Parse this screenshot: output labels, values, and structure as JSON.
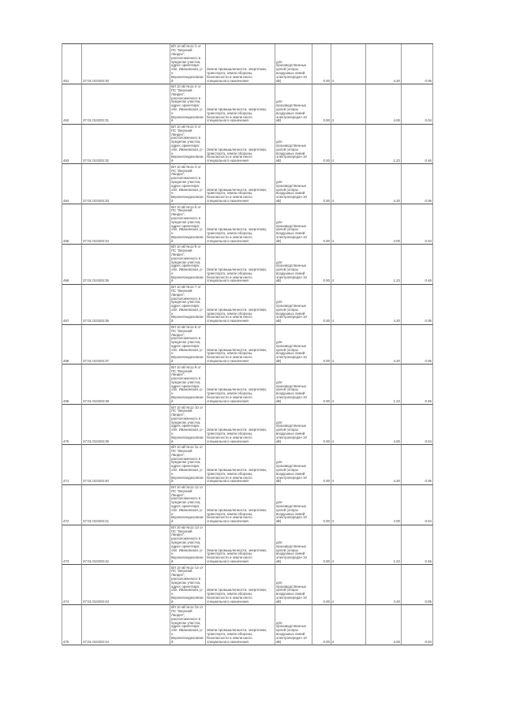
{
  "page": {
    "background_color": "#ffffff",
    "grid_vertical_border_color": "#9b9b9b",
    "grid_horizontal_border_color": "#4f4f4f",
    "text_color": "#3d3d3d"
  },
  "table": {
    "rows": [
      {
        "num": "461",
        "cadastral": "37:01:010203:30",
        "location": "установлено относительно ориентира опоры ВЛ 10 кВ №11-1 от ПС \"Верхний Ландех\", расположенного в пределах участка, адрес ориентира: обл. Ивановская, р-н Верхнеландеховский",
        "category": "Земли промышленности, энергетики, транспорта, земли обороны, безопасности и земли иного специального назначения",
        "permitted_use": "для производственных целей (опоры воздушных линий электропередач 10 кВ)",
        "area": "0.00",
        "qty": "4",
        "blank": "",
        "value1": "4.20",
        "value2": "0.05"
      },
      {
        "num": "462",
        "cadastral": "37:01:010203:31",
        "location": "установлено относительно ориентира опоры ВЛ 10 кВ №11-2 от ПС \"Верхний Ландех\", расположенного в пределах участка, адрес ориентира: обл. Ивановская, р-н Верхнеландеховский",
        "category": "Земли промышленности, энергетики, транспорта, земли обороны, безопасности и земли иного специального назначения",
        "permitted_use": "для производственных целей (опоры воздушных линий электропередач 10 кВ)",
        "area": "0.00",
        "qty": "4",
        "blank": "",
        "value1": "4.00",
        "value2": "0.04"
      },
      {
        "num": "463",
        "cadastral": "37:01:010203:32",
        "location": "установлено относительно ориентира опоры ВЛ 10 кВ №11-3 от ПС \"Верхний Ландех\", расположенного в пределах участка, адрес ориентира: обл. Ивановская, р-н Верхнеландеховский",
        "category": "Земли промышленности, энергетики, транспорта, земли обороны, безопасности и земли иного специального назначения",
        "permitted_use": "для производственных целей (опоры воздушных линий электропередач 10 кВ)",
        "area": "0.00",
        "qty": "4",
        "blank": "",
        "value1": "1.22",
        "value2": "0.46"
      },
      {
        "num": "464",
        "cadastral": "37:01:010203:33",
        "location": "установлено относительно ориентира опоры ВЛ 10 кВ №11-4 от ПС \"Верхний Ландех\", расположенного в пределах участка, адрес ориентира: обл. Ивановская, р-н Верхнеландеховский",
        "category": "Земли промышленности, энергетики, транспорта, земли обороны, безопасности и земли иного специального назначения",
        "permitted_use": "для производственных целей (опоры воздушных линий электропередач 10 кВ)",
        "area": "0.00",
        "qty": "4",
        "blank": "",
        "value1": "4.20",
        "value2": "0.06"
      },
      {
        "num": "465",
        "cadastral": "37:01:010203:34",
        "location": "установлено относительно ориентира опоры ВЛ 10 кВ №11-5 от ПС \"Верхний Ландех\", расположенного в пределах участка, адрес ориентира: обл. Ивановская, р-н Верхнеландеховский",
        "category": "Земли промышленности, энергетики, транспорта, земли обороны, безопасности и земли иного специального назначения",
        "permitted_use": "для производственных целей (опоры воздушных линий электропередач 10 кВ)",
        "area": "0.00",
        "qty": "4",
        "blank": "",
        "value1": "4.00",
        "value2": "0.04"
      },
      {
        "num": "466",
        "cadastral": "37:01:010203:35",
        "location": "установлено относительно ориентира опоры ВЛ 10 кВ №11-6 от ПС \"Верхний Ландех\", расположенного в пределах участка, адрес ориентира: обл. Ивановская, р-н Верхнеландеховский",
        "category": "Земли промышленности, энергетики, транспорта, земли обороны, безопасности и земли иного специального назначения",
        "permitted_use": "для производственных целей (опоры воздушных линий электропередач 10 кВ)",
        "area": "0.00",
        "qty": "4",
        "blank": "",
        "value1": "1.22",
        "value2": "0.46"
      },
      {
        "num": "467",
        "cadastral": "37:01:010203:36",
        "location": "установлено относительно ориентира опоры ВЛ 10 кВ №11-7 от ПС \"Верхний Ландех\", расположенного в пределах участка, адрес ориентира: обл. Ивановская, р-н Верхнеландеховский",
        "category": "Земли промышленности, энергетики, транспорта, земли обороны, безопасности и земли иного специального назначения",
        "permitted_use": "для производственных целей (опоры воздушных линий электропередач 10 кВ)",
        "area": "0.00",
        "qty": "4",
        "blank": "",
        "value1": "4.20",
        "value2": "0.05"
      },
      {
        "num": "468",
        "cadastral": "37:01:010203:37",
        "location": "установлено относительно ориентира опоры ВЛ 10 кВ №11-8 от ПС \"Верхний Ландех\", расположенного в пределах участка, адрес ориентира: обл. Ивановская, р-н Верхнеландеховский",
        "category": "Земли промышленности, энергетики, транспорта, земли обороны, безопасности и земли иного специального назначения",
        "permitted_use": "для производственных целей (опоры воздушных линий электропередач 10 кВ)",
        "area": "0.00",
        "qty": "4",
        "blank": "",
        "value1": "4.20",
        "value2": "0.05"
      },
      {
        "num": "469",
        "cadastral": "37:01:010203:38",
        "location": "установлено относительно ориентира опоры ВЛ 10 кВ №11-9 от ПС \"Верхний Ландех\", расположенного в пределах участка, адрес ориентира: обл. Ивановская, р-н Верхнеландеховский",
        "category": "Земли промышленности, энергетики, транспорта, земли обороны, безопасности и земли иного специального назначения",
        "permitted_use": "для производственных целей (опоры воздушных линий электропередач 10 кВ)",
        "area": "0.00",
        "qty": "4",
        "blank": "",
        "value1": "1.22",
        "value2": "0.46"
      },
      {
        "num": "470",
        "cadastral": "37:01:010203:39",
        "location": "установлено относительно ориентира опоры ВЛ 10 кВ №11-10 от ПС \"Верхний Ландех\", расположенного в пределах участка, адрес ориентира: обл. Ивановская, р-н Верхнеландеховский",
        "category": "Земли промышленности, энергетики, транспорта, земли обороны, безопасности и земли иного специального назначения",
        "permitted_use": "для производственных целей (опоры воздушных линий электропередач 10 кВ)",
        "area": "0.00",
        "qty": "4",
        "blank": "",
        "value1": "4.00",
        "value2": "0.04"
      },
      {
        "num": "471",
        "cadastral": "37:01:010203:40",
        "location": "установлено относительно ориентира опоры ВЛ 10 кВ №11-11 от ПС \"Верхний Ландех\", расположенного в пределах участка, адрес ориентира: обл. Ивановская, р-н Верхнеландеховский",
        "category": "Земли промышленности, энергетики, транспорта, земли обороны, безопасности и земли иного специального назначения",
        "permitted_use": "для производственных целей (опоры воздушных линий электропередач 10 кВ)",
        "area": "0.00",
        "qty": "4",
        "blank": "",
        "value1": "4.20",
        "value2": "0.05"
      },
      {
        "num": "472",
        "cadastral": "37:01:010203:41",
        "location": "установлено относительно ориентира опоры ВЛ 10 кВ №11-12 от ПС \"Верхний Ландех\", расположенного в пределах участка, адрес ориентира: обл. Ивановская, р-н Верхнеландеховский",
        "category": "Земли промышленности, энергетики, транспорта, земли обороны, безопасности и земли иного специального назначения",
        "permitted_use": "для производственных целей (опоры воздушных линий электропередач 10 кВ)",
        "area": "0.00",
        "qty": "4",
        "blank": "",
        "value1": "4.00",
        "value2": "0.04"
      },
      {
        "num": "473",
        "cadastral": "37:01:010203:42",
        "location": "установлено относительно ориентира опоры ВЛ 10 кВ №11-13 от ПС \"Верхний Ландех\", расположенного в пределах участка, адрес ориентира: обл. Ивановская, р-н Верхнеландеховский",
        "category": "Земли промышленности, энергетики, транспорта, земли обороны, безопасности и земли иного специального назначения",
        "permitted_use": "для производственных целей (опоры воздушных линий электропередач 10 кВ)",
        "area": "0.00",
        "qty": "4",
        "blank": "",
        "value1": "1.22",
        "value2": "0.46"
      },
      {
        "num": "474",
        "cadastral": "37:01:010203:43",
        "location": "установлено относительно ориентира опоры ВЛ 10 кВ №11-14 от ПС \"Верхний Ландех\", расположенного в пределах участка, адрес ориентира: обл. Ивановская, р-н Верхнеландеховский",
        "category": "Земли промышленности, энергетики, транспорта, земли обороны, безопасности и земли иного специального назначения",
        "permitted_use": "для производственных целей (опоры воздушных линий электропередач 10 кВ)",
        "area": "0.00",
        "qty": "4",
        "blank": "",
        "value1": "4.20",
        "value2": "0.05"
      },
      {
        "num": "475",
        "cadastral": "37:01:010203:44",
        "location": "установлено относительно ориентира опоры ВЛ 10 кВ №11-15 от ПС \"Верхний Ландех\", расположенного в пределах участка, адрес ориентира: обл. Ивановская, р-н Верхнеландеховский",
        "category": "Земли промышленности, энергетики, транспорта, земли обороны, безопасности и земли иного специального назначения",
        "permitted_use": "для производственных целей (опоры воздушных линий электропередач 10 кВ)",
        "area": "0.00",
        "qty": "4",
        "blank": "",
        "value1": "4.00",
        "value2": "0.04"
      }
    ]
  }
}
